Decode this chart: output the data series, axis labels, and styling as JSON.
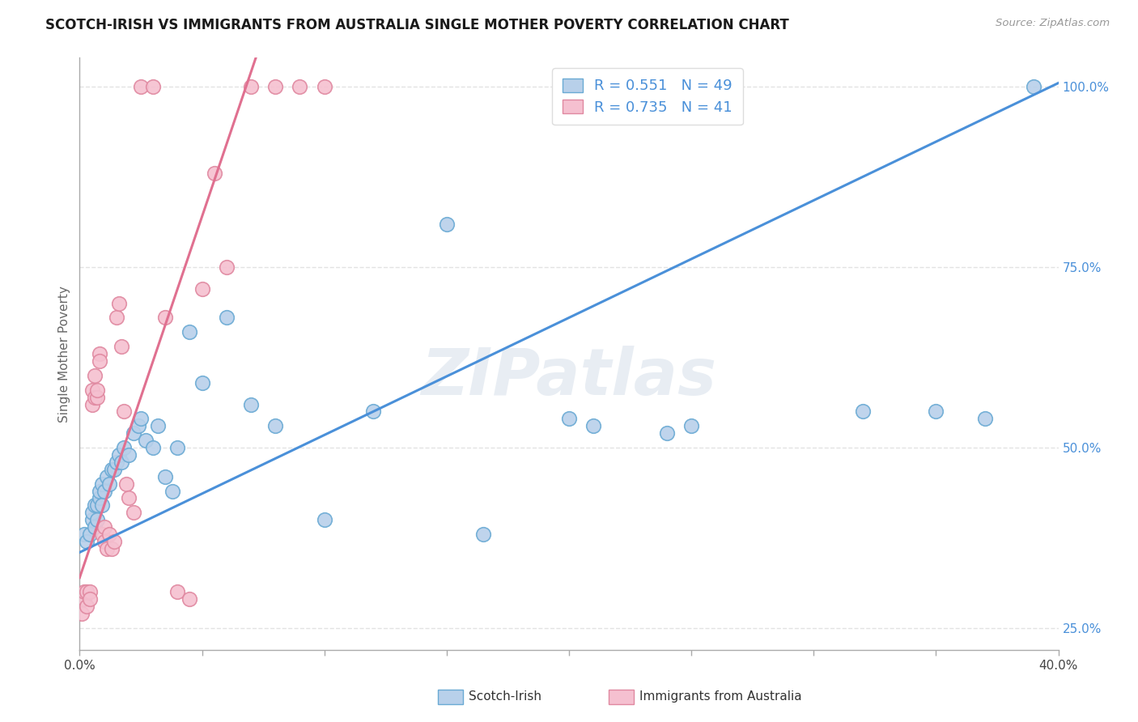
{
  "title": "SCOTCH-IRISH VS IMMIGRANTS FROM AUSTRALIA SINGLE MOTHER POVERTY CORRELATION CHART",
  "source": "Source: ZipAtlas.com",
  "ylabel": "Single Mother Poverty",
  "x_min": 0.0,
  "x_max": 0.4,
  "y_min": 0.22,
  "y_max": 1.04,
  "x_ticks": [
    0.0,
    0.05,
    0.1,
    0.15,
    0.2,
    0.25,
    0.3,
    0.35,
    0.4
  ],
  "y_ticks_right": [
    0.25,
    0.5,
    0.75,
    1.0
  ],
  "y_tick_labels_right": [
    "25.0%",
    "50.0%",
    "75.0%",
    "100.0%"
  ],
  "R_blue": 0.551,
  "N_blue": 49,
  "R_pink": 0.735,
  "N_pink": 41,
  "blue_color": "#b8d0ea",
  "blue_edge_color": "#6aaad4",
  "blue_line_color": "#4a90d9",
  "pink_color": "#f5c0d0",
  "pink_edge_color": "#e088a0",
  "pink_line_color": "#e07090",
  "legend_label_blue": "Scotch-Irish",
  "legend_label_pink": "Immigrants from Australia",
  "watermark": "ZIPatlas",
  "blue_line_x": [
    0.0,
    0.4
  ],
  "blue_line_y": [
    0.355,
    1.005
  ],
  "pink_line_x": [
    0.0,
    0.072
  ],
  "pink_line_y": [
    0.32,
    1.04
  ],
  "blue_scatter_x": [
    0.002,
    0.003,
    0.004,
    0.005,
    0.005,
    0.006,
    0.006,
    0.007,
    0.007,
    0.008,
    0.008,
    0.009,
    0.009,
    0.01,
    0.011,
    0.012,
    0.013,
    0.014,
    0.015,
    0.016,
    0.017,
    0.018,
    0.02,
    0.022,
    0.024,
    0.025,
    0.027,
    0.03,
    0.032,
    0.035,
    0.038,
    0.04,
    0.045,
    0.05,
    0.06,
    0.07,
    0.08,
    0.1,
    0.12,
    0.15,
    0.165,
    0.2,
    0.21,
    0.24,
    0.25,
    0.32,
    0.35,
    0.37,
    0.39
  ],
  "blue_scatter_y": [
    0.38,
    0.37,
    0.38,
    0.4,
    0.41,
    0.39,
    0.42,
    0.4,
    0.42,
    0.43,
    0.44,
    0.42,
    0.45,
    0.44,
    0.46,
    0.45,
    0.47,
    0.47,
    0.48,
    0.49,
    0.48,
    0.5,
    0.49,
    0.52,
    0.53,
    0.54,
    0.51,
    0.5,
    0.53,
    0.46,
    0.44,
    0.5,
    0.66,
    0.59,
    0.68,
    0.56,
    0.53,
    0.4,
    0.55,
    0.81,
    0.38,
    0.54,
    0.53,
    0.52,
    0.53,
    0.55,
    0.55,
    0.54,
    1.0
  ],
  "pink_scatter_x": [
    0.001,
    0.002,
    0.002,
    0.003,
    0.003,
    0.004,
    0.004,
    0.005,
    0.005,
    0.006,
    0.006,
    0.007,
    0.007,
    0.008,
    0.008,
    0.009,
    0.01,
    0.01,
    0.011,
    0.012,
    0.013,
    0.014,
    0.015,
    0.016,
    0.017,
    0.018,
    0.019,
    0.02,
    0.022,
    0.025,
    0.03,
    0.035,
    0.04,
    0.045,
    0.05,
    0.055,
    0.06,
    0.07,
    0.08,
    0.09,
    0.1
  ],
  "pink_scatter_y": [
    0.27,
    0.29,
    0.3,
    0.3,
    0.28,
    0.3,
    0.29,
    0.56,
    0.58,
    0.57,
    0.6,
    0.57,
    0.58,
    0.63,
    0.62,
    0.38,
    0.37,
    0.39,
    0.36,
    0.38,
    0.36,
    0.37,
    0.68,
    0.7,
    0.64,
    0.55,
    0.45,
    0.43,
    0.41,
    1.0,
    1.0,
    0.68,
    0.3,
    0.29,
    0.72,
    0.88,
    0.75,
    1.0,
    1.0,
    1.0,
    1.0
  ],
  "background_color": "#ffffff",
  "grid_color": "#dddddd",
  "title_fontsize": 12,
  "axis_label_fontsize": 11,
  "tick_fontsize": 11
}
